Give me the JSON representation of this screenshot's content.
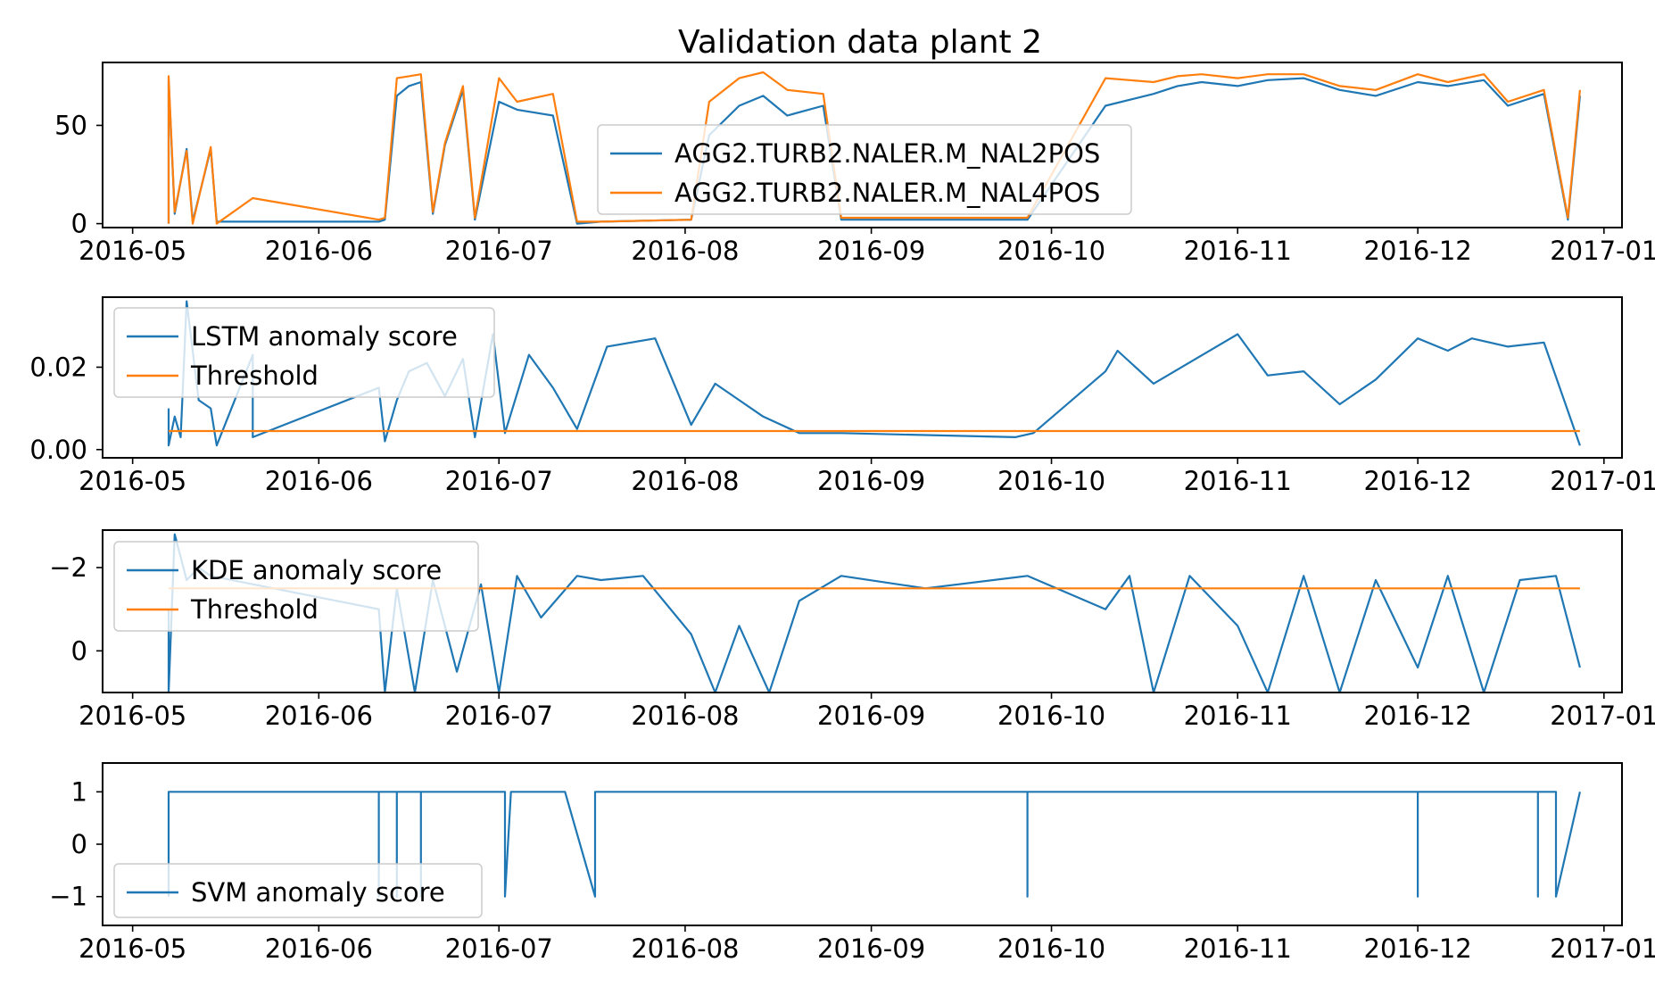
{
  "figure": {
    "title": "Validation data plant 2"
  },
  "colors": {
    "series_blue": "#1f77b4",
    "series_orange": "#ff7f0e",
    "axes": "#000000",
    "background": "#ffffff"
  },
  "x_axis": {
    "type": "date",
    "range": [
      "2016-04-26",
      "2017-01-04"
    ],
    "ticks": [
      "2016-05-01",
      "2016-06-01",
      "2016-07-01",
      "2016-08-01",
      "2016-09-01",
      "2016-10-01",
      "2016-11-01",
      "2016-12-01",
      "2017-01-01"
    ],
    "tick_labels": [
      "2016-05",
      "2016-06",
      "2016-07",
      "2016-08",
      "2016-09",
      "2016-10",
      "2016-11",
      "2016-12",
      "2017-01"
    ]
  },
  "chart_data": [
    {
      "type": "line",
      "title": "Validation data plant 2",
      "ylim": [
        -2,
        82
      ],
      "yticks": [
        0,
        50
      ],
      "ytick_labels": [
        "0",
        "50"
      ],
      "legend_location": "center",
      "series": [
        {
          "name": "AGG2.TURB2.NALER.M_NAL2POS",
          "color": "#1f77b4",
          "x": [
            "2016-05-07",
            "2016-05-07",
            "2016-05-08",
            "2016-05-10",
            "2016-05-11",
            "2016-05-14",
            "2016-05-15",
            "2016-05-21",
            "2016-06-11",
            "2016-06-12",
            "2016-06-14",
            "2016-06-16",
            "2016-06-18",
            "2016-06-20",
            "2016-06-22",
            "2016-06-25",
            "2016-06-27",
            "2016-07-01",
            "2016-07-04",
            "2016-07-10",
            "2016-07-14",
            "2016-07-18",
            "2016-08-02",
            "2016-08-05",
            "2016-08-10",
            "2016-08-14",
            "2016-08-18",
            "2016-08-24",
            "2016-08-27",
            "2016-09-27",
            "2016-10-10",
            "2016-10-18",
            "2016-10-22",
            "2016-10-26",
            "2016-11-01",
            "2016-11-06",
            "2016-11-12",
            "2016-11-18",
            "2016-11-24",
            "2016-12-01",
            "2016-12-06",
            "2016-12-12",
            "2016-12-16",
            "2016-12-22",
            "2016-12-26",
            "2016-12-28"
          ],
          "y": [
            0,
            73,
            5,
            38,
            1,
            38,
            1,
            1,
            1,
            2,
            65,
            70,
            72,
            5,
            40,
            68,
            2,
            62,
            58,
            55,
            0,
            1,
            2,
            45,
            60,
            65,
            55,
            60,
            2,
            2,
            60,
            66,
            70,
            72,
            70,
            73,
            74,
            68,
            65,
            72,
            70,
            73,
            60,
            66,
            2,
            65
          ]
        },
        {
          "name": "AGG2.TURB2.NALER.M_NAL4POS",
          "color": "#ff7f0e",
          "x": [
            "2016-05-07",
            "2016-05-07",
            "2016-05-08",
            "2016-05-10",
            "2016-05-11",
            "2016-05-14",
            "2016-05-15",
            "2016-05-21",
            "2016-06-11",
            "2016-06-12",
            "2016-06-14",
            "2016-06-16",
            "2016-06-18",
            "2016-06-20",
            "2016-06-22",
            "2016-06-25",
            "2016-06-27",
            "2016-07-01",
            "2016-07-04",
            "2016-07-10",
            "2016-07-14",
            "2016-07-18",
            "2016-08-02",
            "2016-08-05",
            "2016-08-10",
            "2016-08-14",
            "2016-08-18",
            "2016-08-24",
            "2016-08-27",
            "2016-09-27",
            "2016-10-10",
            "2016-10-18",
            "2016-10-22",
            "2016-10-26",
            "2016-11-01",
            "2016-11-06",
            "2016-11-12",
            "2016-11-18",
            "2016-11-24",
            "2016-12-01",
            "2016-12-06",
            "2016-12-12",
            "2016-12-16",
            "2016-12-22",
            "2016-12-26",
            "2016-12-28"
          ],
          "y": [
            0,
            75,
            6,
            37,
            0,
            39,
            0,
            13,
            2,
            3,
            74,
            75,
            76,
            6,
            41,
            70,
            3,
            74,
            62,
            66,
            1,
            1,
            2,
            62,
            74,
            77,
            68,
            66,
            3,
            3,
            74,
            72,
            75,
            76,
            74,
            76,
            76,
            70,
            68,
            76,
            72,
            76,
            62,
            68,
            3,
            68
          ]
        }
      ]
    },
    {
      "type": "line",
      "ylim": [
        -0.002,
        0.037
      ],
      "yticks": [
        0.0,
        0.02
      ],
      "ytick_labels": [
        "0.00",
        "0.02"
      ],
      "legend_location": "upper left",
      "series": [
        {
          "name": "LSTM anomaly score",
          "color": "#1f77b4",
          "x": [
            "2016-05-07",
            "2016-05-07",
            "2016-05-08",
            "2016-05-09",
            "2016-05-10",
            "2016-05-12",
            "2016-05-14",
            "2016-05-15",
            "2016-05-21",
            "2016-05-21",
            "2016-06-11",
            "2016-06-12",
            "2016-06-14",
            "2016-06-16",
            "2016-06-19",
            "2016-06-22",
            "2016-06-25",
            "2016-06-27",
            "2016-06-30",
            "2016-07-02",
            "2016-07-06",
            "2016-07-10",
            "2016-07-14",
            "2016-07-19",
            "2016-07-27",
            "2016-08-02",
            "2016-08-06",
            "2016-08-10",
            "2016-08-14",
            "2016-08-20",
            "2016-08-27",
            "2016-09-25",
            "2016-09-28",
            "2016-10-10",
            "2016-10-12",
            "2016-10-18",
            "2016-10-25",
            "2016-11-01",
            "2016-11-06",
            "2016-11-12",
            "2016-11-18",
            "2016-11-24",
            "2016-12-01",
            "2016-12-06",
            "2016-12-10",
            "2016-12-16",
            "2016-12-22",
            "2016-12-28"
          ],
          "y": [
            0.01,
            0.001,
            0.008,
            0.003,
            0.036,
            0.012,
            0.01,
            0.001,
            0.023,
            0.003,
            0.015,
            0.002,
            0.012,
            0.019,
            0.021,
            0.013,
            0.022,
            0.003,
            0.028,
            0.004,
            0.023,
            0.015,
            0.005,
            0.025,
            0.027,
            0.006,
            0.016,
            0.012,
            0.008,
            0.004,
            0.004,
            0.003,
            0.004,
            0.019,
            0.024,
            0.016,
            0.022,
            0.028,
            0.018,
            0.019,
            0.011,
            0.017,
            0.027,
            0.024,
            0.027,
            0.025,
            0.026,
            0.001
          ]
        },
        {
          "name": "Threshold",
          "color": "#ff7f0e",
          "x": [
            "2016-05-07",
            "2016-12-28"
          ],
          "y": [
            0.0045,
            0.0045
          ]
        }
      ]
    },
    {
      "type": "line",
      "ylim": [
        1.0,
        -2.9
      ],
      "y_inverted": true,
      "yticks": [
        -2,
        0
      ],
      "ytick_labels": [
        "−2",
        "0"
      ],
      "legend_location": "upper left",
      "series": [
        {
          "name": "KDE anomaly score",
          "color": "#1f77b4",
          "x": [
            "2016-05-07",
            "2016-05-07",
            "2016-05-08",
            "2016-05-10",
            "2016-05-12",
            "2016-05-14",
            "2016-06-11",
            "2016-06-12",
            "2016-06-14",
            "2016-06-17",
            "2016-06-20",
            "2016-06-24",
            "2016-06-28",
            "2016-07-01",
            "2016-07-04",
            "2016-07-08",
            "2016-07-14",
            "2016-07-18",
            "2016-07-25",
            "2016-08-02",
            "2016-08-06",
            "2016-08-10",
            "2016-08-15",
            "2016-08-20",
            "2016-08-27",
            "2016-09-10",
            "2016-09-27",
            "2016-10-10",
            "2016-10-14",
            "2016-10-18",
            "2016-10-24",
            "2016-11-01",
            "2016-11-06",
            "2016-11-12",
            "2016-11-18",
            "2016-11-24",
            "2016-12-01",
            "2016-12-06",
            "2016-12-12",
            "2016-12-18",
            "2016-12-24",
            "2016-12-28"
          ],
          "y": [
            -1.0,
            1.0,
            -2.8,
            -1.7,
            -2.0,
            -1.8,
            -1.0,
            1.0,
            -1.5,
            1.0,
            -1.7,
            0.5,
            -1.6,
            1.0,
            -1.8,
            -0.8,
            -1.8,
            -1.7,
            -1.8,
            -0.4,
            1.0,
            -0.6,
            1.0,
            -1.2,
            -1.8,
            -1.5,
            -1.8,
            -1.0,
            -1.8,
            1.0,
            -1.8,
            -0.6,
            1.0,
            -1.8,
            1.0,
            -1.7,
            0.4,
            -1.8,
            1.0,
            -1.7,
            -1.8,
            0.4
          ]
        },
        {
          "name": "Threshold",
          "color": "#ff7f0e",
          "x": [
            "2016-05-07",
            "2016-12-28"
          ],
          "y": [
            -1.5,
            -1.5
          ]
        }
      ]
    },
    {
      "type": "line",
      "ylim": [
        -1.55,
        1.55
      ],
      "yticks": [
        -1,
        0,
        1
      ],
      "ytick_labels": [
        "−1",
        "0",
        "1"
      ],
      "legend_location": "lower left",
      "series": [
        {
          "name": "SVM anomaly score",
          "color": "#1f77b4",
          "x": [
            "2016-05-07",
            "2016-05-07",
            "2016-06-11",
            "2016-06-11",
            "2016-06-11",
            "2016-06-14",
            "2016-06-14",
            "2016-06-14",
            "2016-06-18",
            "2016-06-18",
            "2016-06-18",
            "2016-07-02",
            "2016-07-02",
            "2016-07-03",
            "2016-07-12",
            "2016-07-17",
            "2016-07-17",
            "2016-09-27",
            "2016-09-27",
            "2016-09-27",
            "2016-12-01",
            "2016-12-01",
            "2016-12-01",
            "2016-12-21",
            "2016-12-21",
            "2016-12-21",
            "2016-12-24",
            "2016-12-24",
            "2016-12-28"
          ],
          "y": [
            -1,
            1,
            1,
            -1,
            1,
            1,
            -1,
            1,
            1,
            -1,
            1,
            1,
            -1,
            1,
            1,
            -1,
            1,
            1,
            -1,
            1,
            1,
            -1,
            1,
            1,
            -1,
            1,
            1,
            -1,
            1
          ]
        }
      ]
    }
  ]
}
